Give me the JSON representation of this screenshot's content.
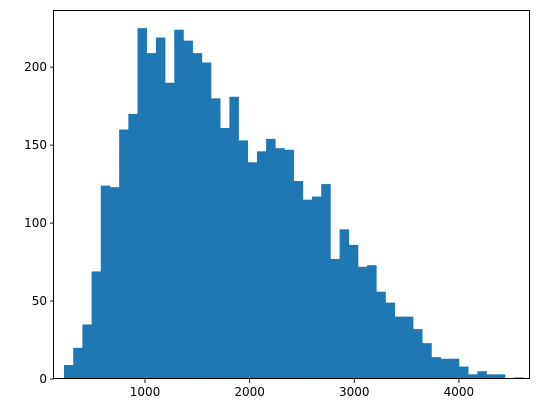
{
  "chart_data": {
    "type": "bar",
    "subtype": "histogram",
    "title": "",
    "xlabel": "",
    "ylabel": "",
    "xlim": [
      130,
      4680
    ],
    "ylim": [
      0,
      236
    ],
    "grid": false,
    "bar_color": "#1f77b4",
    "bin_width": 87.8,
    "bin_edges_start": 226,
    "values": [
      9,
      20,
      35,
      69,
      124,
      123,
      160,
      170,
      225,
      209,
      219,
      190,
      224,
      217,
      209,
      203,
      180,
      161,
      181,
      153,
      139,
      146,
      154,
      148,
      147,
      127,
      115,
      117,
      125,
      77,
      96,
      86,
      72,
      73,
      56,
      49,
      40,
      40,
      32,
      23,
      14,
      13,
      13,
      8,
      3,
      5,
      3,
      3,
      0,
      1
    ],
    "x_ticks": [
      1000,
      2000,
      3000,
      4000
    ],
    "x_tick_labels": [
      "1000",
      "2000",
      "3000",
      "4000"
    ],
    "y_ticks": [
      0,
      50,
      100,
      150,
      200
    ],
    "y_tick_labels": [
      "0",
      "50",
      "100",
      "150",
      "200"
    ]
  }
}
